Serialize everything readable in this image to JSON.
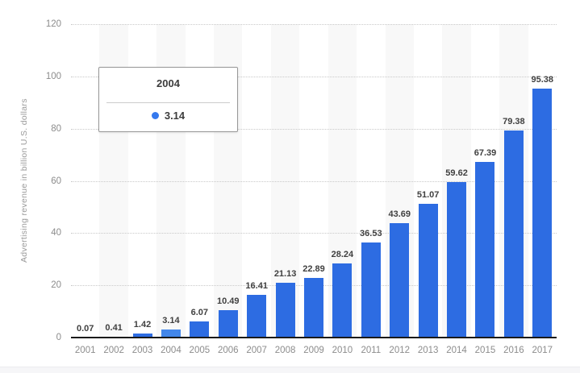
{
  "chart_data": {
    "type": "bar",
    "title": "",
    "categories": [
      "2001",
      "2002",
      "2003",
      "2004",
      "2005",
      "2006",
      "2007",
      "2008",
      "2009",
      "2010",
      "2011",
      "2012",
      "2013",
      "2014",
      "2015",
      "2016",
      "2017"
    ],
    "values": [
      0.07,
      0.41,
      1.42,
      3.14,
      6.07,
      10.49,
      16.41,
      21.13,
      22.89,
      28.24,
      36.53,
      43.69,
      51.07,
      59.62,
      67.39,
      79.38,
      95.38
    ],
    "xlabel": "",
    "ylabel": "Advertising revenue in billion U.S. dollars",
    "ylim": [
      0,
      120
    ],
    "yticks": [
      0,
      20,
      40,
      60,
      80,
      100,
      120
    ],
    "grid": "horizontal-dotted",
    "legend": "none",
    "highlight_index": 3,
    "colors": {
      "bar": "#2d6ce2",
      "bar_highlight": "#4387ea",
      "band": "#f8f8f8",
      "value_label": "#404040",
      "tick_label": "#8c8c8c"
    }
  },
  "tooltip": {
    "category": "2004",
    "value": "3.14",
    "dot_color": "#3579ee"
  }
}
